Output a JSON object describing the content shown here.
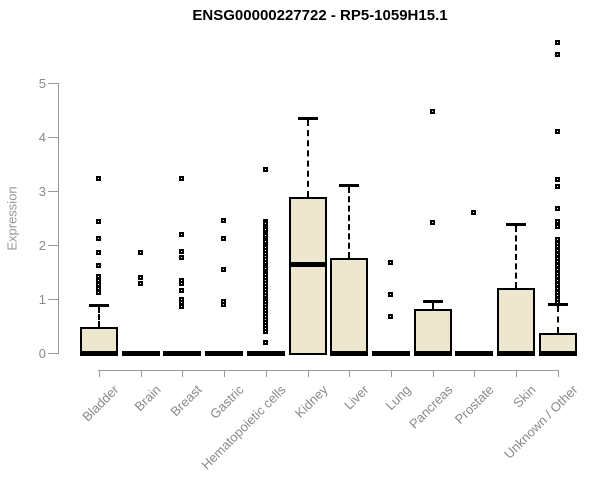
{
  "title": "ENSG00000227722 - RP5-1059H15.1",
  "colors": {
    "box_fill": "#ECE7CD",
    "box_stroke": "#000000",
    "axis": "#999999",
    "axis_text": "#8a8a8a",
    "title_text": "#000000"
  },
  "chart_data": {
    "type": "boxplot",
    "title": "ENSG00000227722 - RP5-1059H15.1",
    "xlabel": "",
    "ylabel": "Expression",
    "ylim": [
      0,
      5.8
    ],
    "yticks": [
      0,
      1,
      2,
      3,
      4,
      5
    ],
    "grid": false,
    "legend": "none",
    "categories": [
      "Bladder",
      "Brain",
      "Breast",
      "Gastric",
      "Hematopoietic cells",
      "Kidney",
      "Liver",
      "Lung",
      "Pancreas",
      "Prostate",
      "Skin",
      "Unknown / Other"
    ],
    "series": [
      {
        "name": "Bladder",
        "whisker_low": 0,
        "q1": 0,
        "median": 0,
        "q3": 0.45,
        "whisker_high": 0.88,
        "outliers": [
          3.22,
          2.42,
          2.11,
          1.86,
          1.61,
          1.4,
          1.33,
          1.26,
          1.19,
          1.12
        ]
      },
      {
        "name": "Brain",
        "whisker_low": 0,
        "q1": 0,
        "median": 0,
        "q3": 0,
        "whisker_high": 0,
        "outliers": [
          1.86,
          1.39,
          1.27
        ]
      },
      {
        "name": "Breast",
        "whisker_low": 0,
        "q1": 0,
        "median": 0,
        "q3": 0,
        "whisker_high": 0,
        "outliers": [
          3.22,
          2.19,
          1.87,
          1.76,
          1.33,
          1.27,
          1.14,
          0.98,
          0.92,
          0.86
        ]
      },
      {
        "name": "Gastric",
        "whisker_low": 0,
        "q1": 0,
        "median": 0,
        "q3": 0,
        "whisker_high": 0,
        "outliers": [
          2.44,
          2.11,
          1.54,
          0.94,
          0.88
        ]
      },
      {
        "name": "Hematopoietic cells",
        "whisker_low": 0,
        "q1": 0,
        "median": 0,
        "q3": 0,
        "whisker_high": 0,
        "outliers": [
          3.39,
          2.43,
          2.38,
          2.32,
          2.27,
          2.21,
          2.16,
          2.1,
          2.05,
          1.99,
          1.94,
          1.88,
          1.83,
          1.77,
          1.72,
          1.66,
          1.6,
          1.55,
          1.49,
          1.44,
          1.38,
          1.33,
          1.27,
          1.22,
          1.16,
          1.11,
          1.05,
          0.99,
          0.94,
          0.88,
          0.83,
          0.77,
          0.72,
          0.66,
          0.61,
          0.55,
          0.5,
          0.44,
          0.39,
          0.18
        ]
      },
      {
        "name": "Kidney",
        "whisker_low": 0,
        "q1": 0,
        "median": 1.65,
        "q3": 2.85,
        "whisker_high": 4.35,
        "outliers": []
      },
      {
        "name": "Liver",
        "whisker_low": 0,
        "q1": 0,
        "median": 0,
        "q3": 1.72,
        "whisker_high": 3.12,
        "outliers": []
      },
      {
        "name": "Lung",
        "whisker_low": 0,
        "q1": 0,
        "median": 0,
        "q3": 0,
        "whisker_high": 0,
        "outliers": [
          1.66,
          1.07,
          0.67
        ]
      },
      {
        "name": "Pancreas",
        "whisker_low": 0,
        "q1": 0,
        "median": 0,
        "q3": 0.78,
        "whisker_high": 0.97,
        "outliers": [
          4.46,
          2.4
        ]
      },
      {
        "name": "Prostate",
        "whisker_low": 0,
        "q1": 0,
        "median": 0,
        "q3": 0,
        "whisker_high": 0,
        "outliers": [
          2.59
        ]
      },
      {
        "name": "Skin",
        "whisker_low": 0,
        "q1": 0,
        "median": 0,
        "q3": 1.16,
        "whisker_high": 2.38,
        "outliers": []
      },
      {
        "name": "Unknown / Other",
        "whisker_low": 0,
        "q1": 0,
        "median": 0,
        "q3": 0.34,
        "whisker_high": 0.91,
        "outliers": [
          5.75,
          5.51,
          4.1,
          3.2,
          3.08,
          2.66,
          2.43,
          2.34,
          2.09,
          2.02,
          1.96,
          1.89,
          1.82,
          1.75,
          1.68,
          1.61,
          1.54,
          1.47,
          1.4,
          1.33,
          1.26,
          1.19,
          1.12,
          1.05,
          0.98,
          0.93
        ]
      }
    ]
  }
}
